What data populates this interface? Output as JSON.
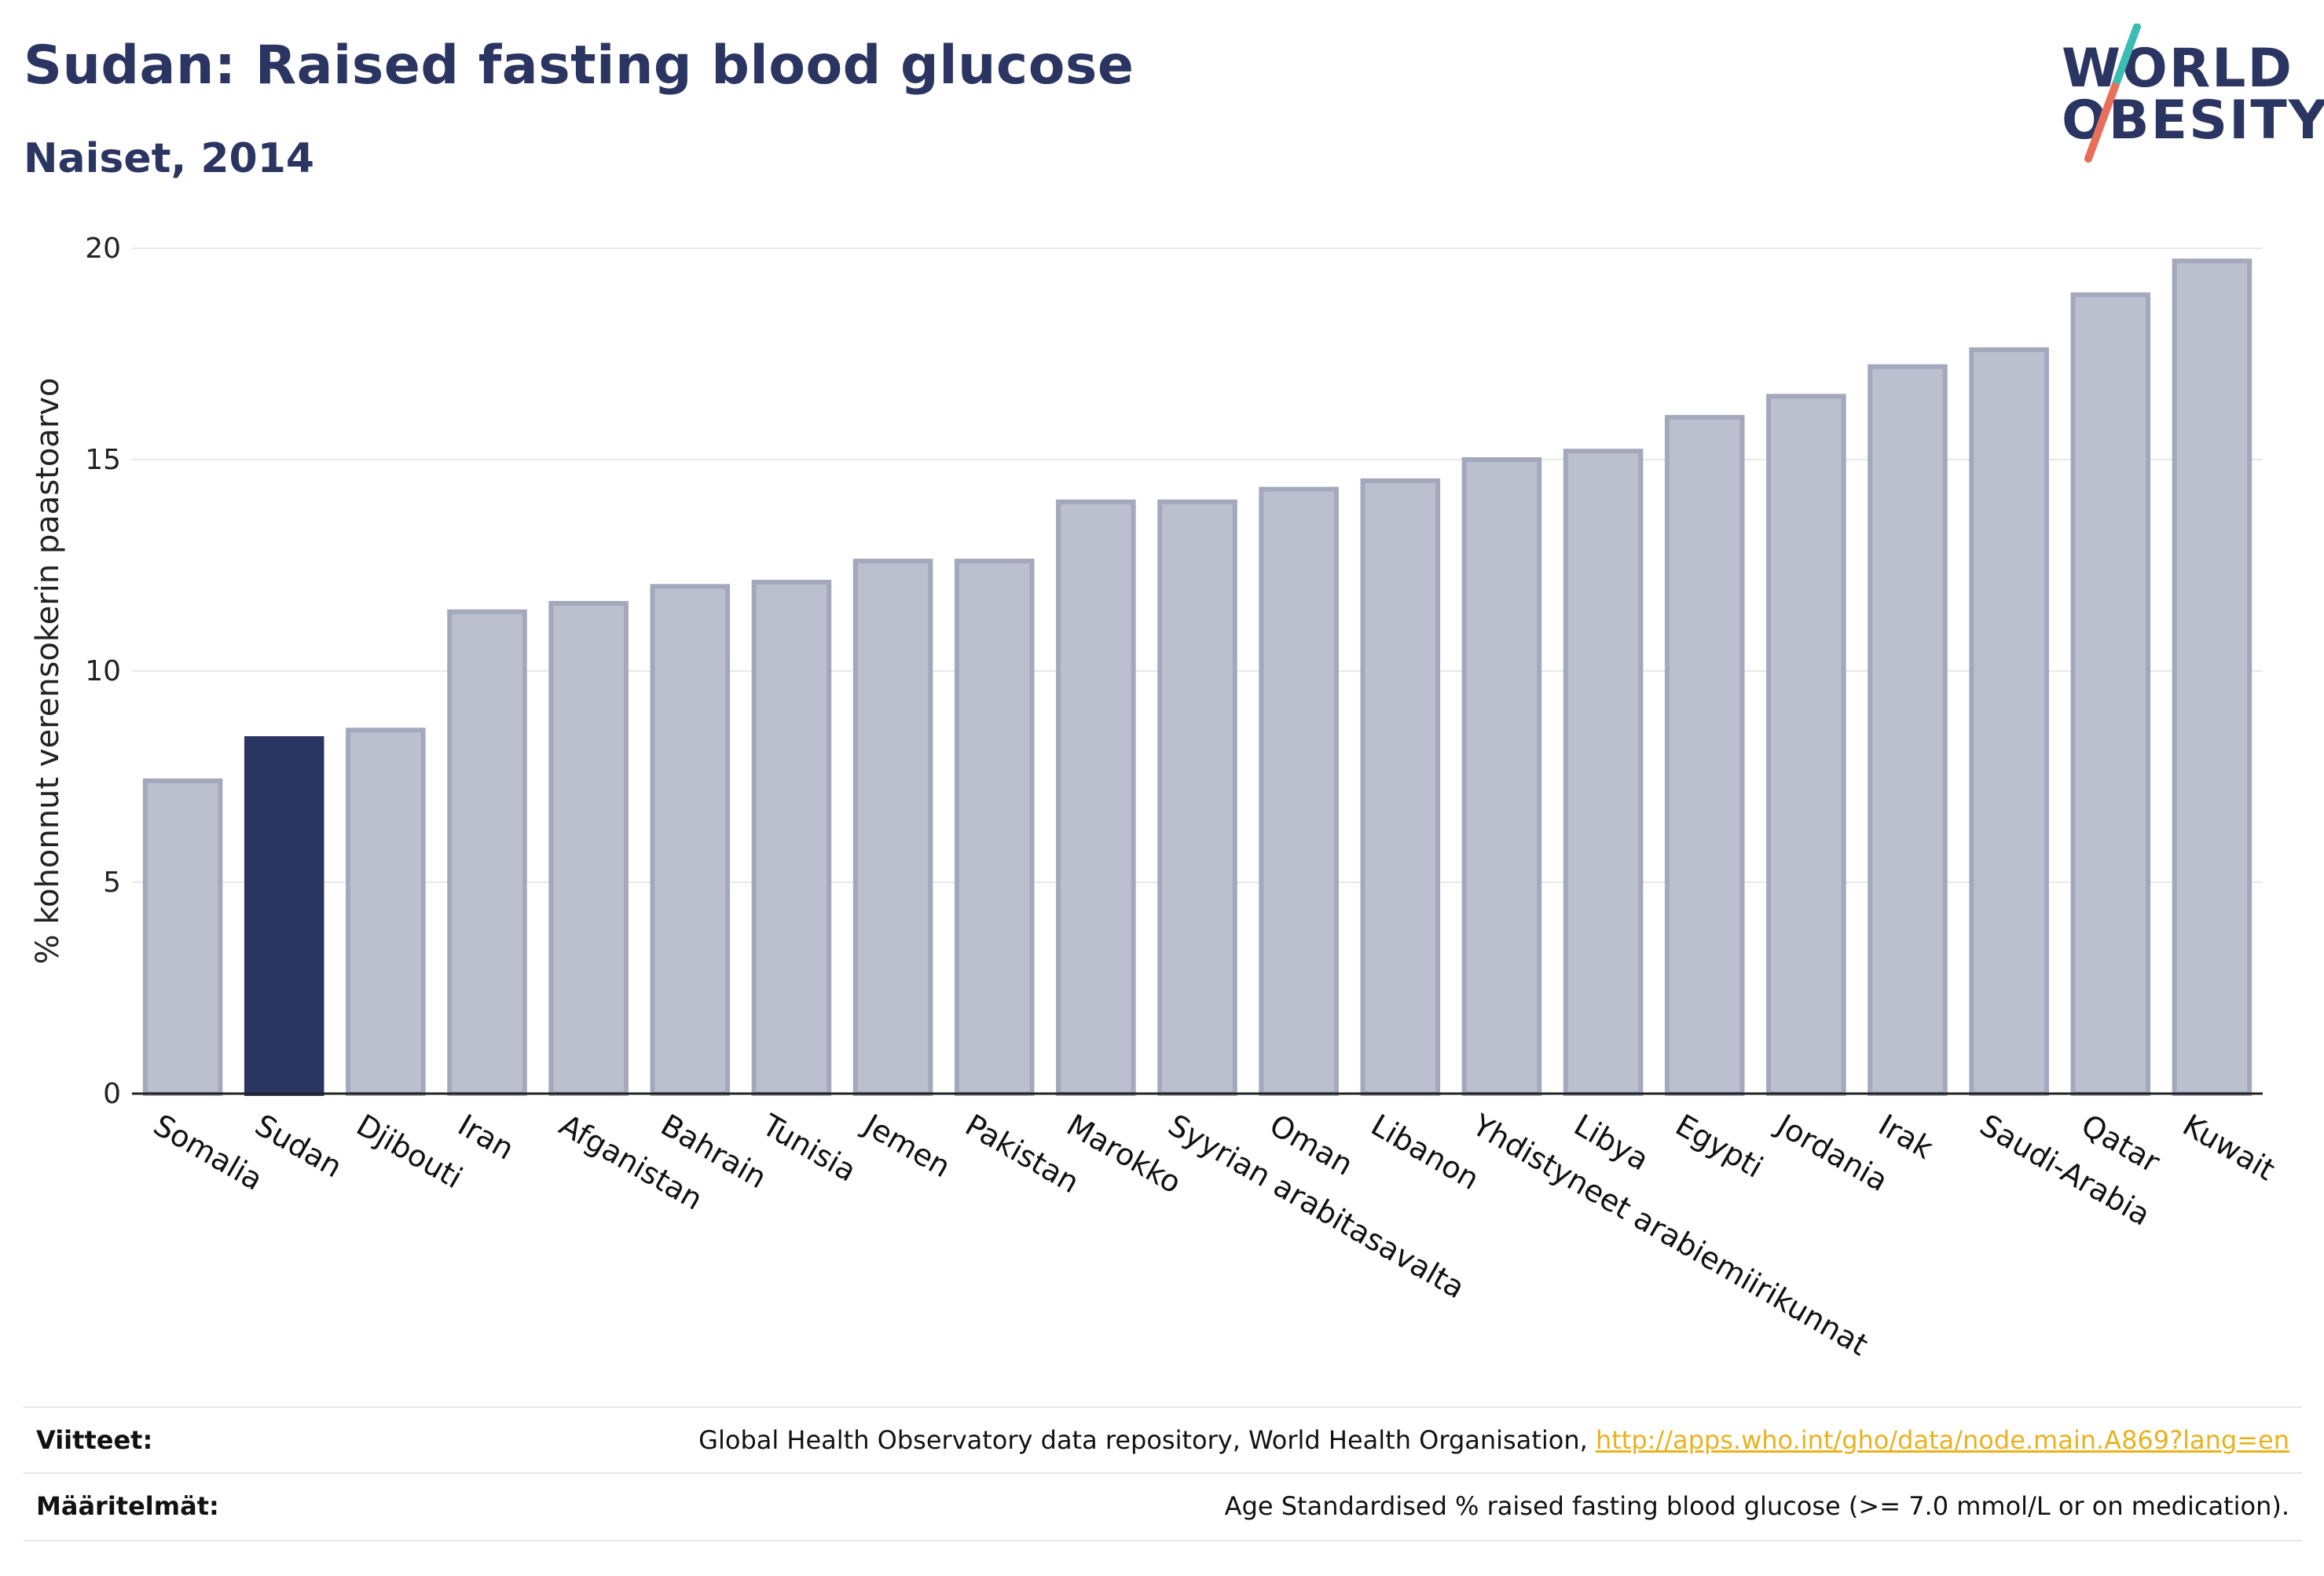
{
  "title": "Sudan: Raised fasting blood glucose",
  "subtitle": "Naiset, 2014",
  "logo": {
    "line1": "WORLD",
    "line2": "OBESITY"
  },
  "colors": {
    "highlight": "#2b3561",
    "bar": "#bcc0ce",
    "bar_stroke": "#a3a8bd",
    "grid": "#e8e8e8",
    "logo_teal": "#3bbcb4",
    "logo_coral": "#e8705a"
  },
  "chart_data": {
    "type": "bar",
    "title": "Sudan: Raised fasting blood glucose",
    "subtitle": "Naiset, 2014",
    "ylabel": "% kohonnut verensokerin paastoarvo",
    "xlabel": "",
    "ylim": [
      0,
      20
    ],
    "yticks": [
      0,
      5,
      10,
      15,
      20
    ],
    "grid": true,
    "highlight": "Sudan",
    "categories": [
      "Somalia",
      "Sudan",
      "Djibouti",
      "Iran",
      "Afganistan",
      "Bahrain",
      "Tunisia",
      "Jemen",
      "Pakistan",
      "Marokko",
      "Syyrian arabitasavalta",
      "Oman",
      "Libanon",
      "Yhdistyneet arabiemiirikunnat",
      "Libya",
      "Egypti",
      "Jordania",
      "Irak",
      "Saudi-Arabia",
      "Qatar",
      "Kuwait"
    ],
    "values": [
      7.4,
      8.4,
      8.6,
      11.4,
      11.6,
      12.0,
      12.1,
      12.6,
      12.6,
      14.0,
      14.0,
      14.3,
      14.5,
      15.0,
      15.2,
      16.0,
      16.5,
      17.2,
      17.6,
      18.9,
      19.7
    ]
  },
  "footer": {
    "sources_label": "Viitteet:",
    "sources_text": "Global Health Observatory data repository, World Health Organisation, ",
    "sources_link": "http://apps.who.int/gho/data/node.main.A869?lang=en",
    "definitions_label": "Määritelmät:",
    "definitions_text": "Age Standardised % raised fasting blood glucose (>= 7.0 mmol/L or on medication)."
  }
}
